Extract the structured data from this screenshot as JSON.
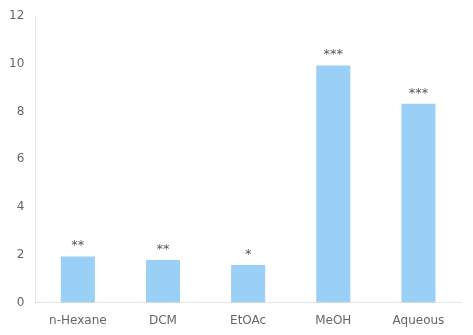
{
  "chart_data": {
    "type": "bar",
    "categories": [
      "n-Hexane",
      "DCM",
      "EtOAc",
      "MeOH",
      "Aqueous"
    ],
    "values": [
      1.93,
      1.78,
      1.57,
      9.93,
      8.33
    ],
    "annotations": [
      "**",
      "**",
      "*",
      "***",
      "***"
    ],
    "ylim": [
      0,
      12
    ],
    "yticks": [
      0,
      2,
      4,
      6,
      8,
      10,
      12
    ],
    "grid": false
  }
}
